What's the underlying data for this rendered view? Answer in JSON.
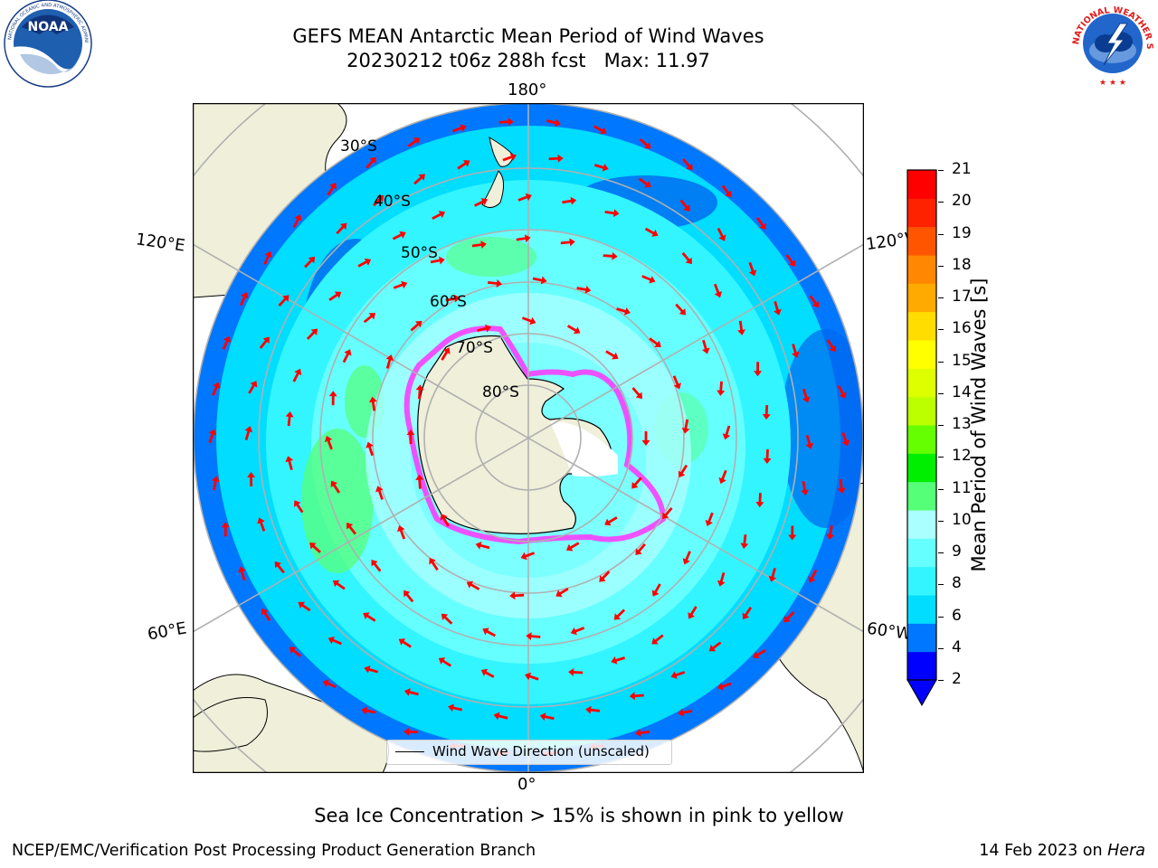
{
  "header": {
    "title_line1": "GEFS MEAN Antarctic Mean Period of Wind Waves",
    "title_line2": "20230212 t06z 288h fcst   Max: 11.97"
  },
  "logos": {
    "left": "NOAA",
    "left_ring": "NATIONAL OCEANIC AND ATMOSPHERIC ADMINISTRATION · U.S. DEPARTMENT OF COMMERCE",
    "right_ring": "NATIONAL WEATHER SERVICE"
  },
  "map": {
    "projection": "south-polar-stereographic",
    "longitude_labels": {
      "top": "180°",
      "bottom": "0°",
      "left_upper": "120°E",
      "left_lower": "60°E",
      "right_upper": "120°W",
      "right_lower": "60°W"
    },
    "latitude_labels": [
      "30°S",
      "40°S",
      "50°S",
      "60°S",
      "70°S",
      "80°S"
    ],
    "legend": "Wind Wave Direction (unscaled)",
    "colors": {
      "land": "#efefda",
      "ice_edge": "#ff33ff",
      "arrow": "#ff0000",
      "graticule": "#b0b0b0"
    }
  },
  "colorbar": {
    "label": "Mean Period of Wind Waves [s]",
    "ticks": [
      "21",
      "20",
      "19",
      "18",
      "17",
      "16",
      "15",
      "14",
      "13",
      "12",
      "11",
      "10",
      "9",
      "8",
      "6",
      "4",
      "2"
    ],
    "colors": [
      "#0000ff",
      "#0077ff",
      "#00ddff",
      "#33f5ff",
      "#66ffff",
      "#aaffff",
      "#55ff77",
      "#00ee00",
      "#66ff00",
      "#bbff00",
      "#ddff00",
      "#ffff00",
      "#ffdd00",
      "#ffaa00",
      "#ff8800",
      "#ff5500",
      "#ff2200",
      "#ff0000"
    ]
  },
  "notes": {
    "sea_ice": "Sea Ice Concentration > 15% is shown in pink to yellow"
  },
  "footer": {
    "left": "NCEP/EMC/Verification Post Processing Product Generation Branch",
    "date_prefix": "14 Feb 2023 on ",
    "host": "Hera"
  }
}
